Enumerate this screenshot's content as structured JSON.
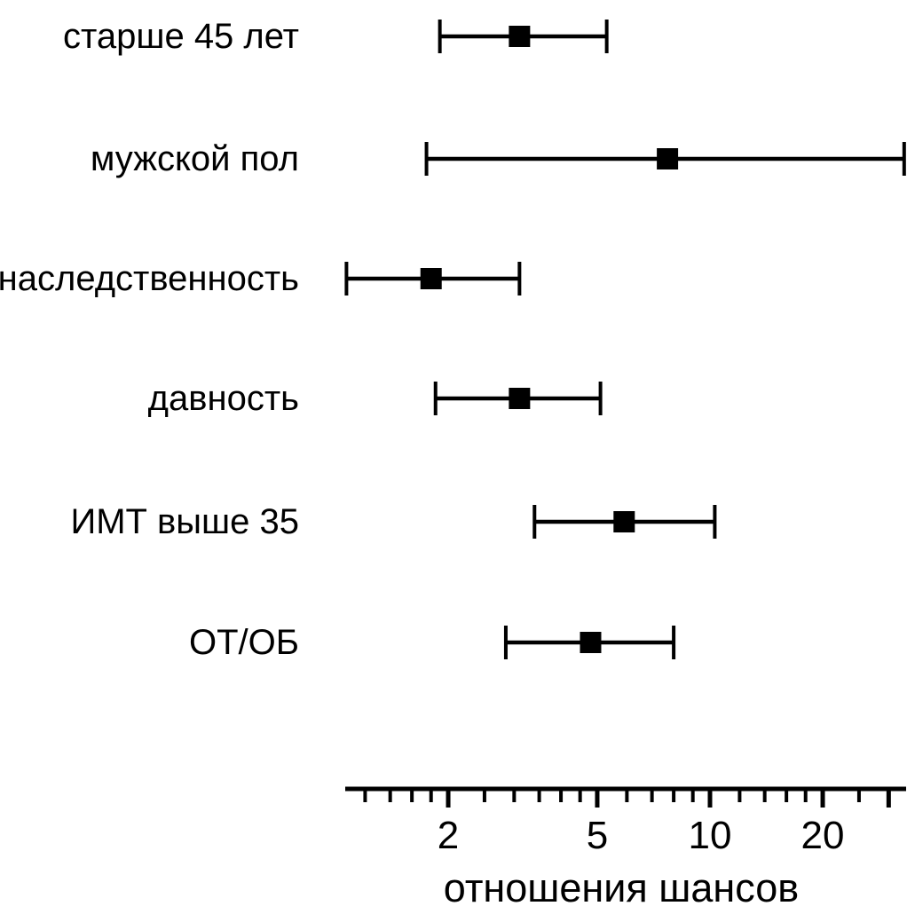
{
  "figure": {
    "background": "#ffffff",
    "ink_color": "#000000"
  },
  "chart_data": {
    "type": "scatter",
    "variant": "forest-plot-odds-ratios",
    "orientation": "horizontal",
    "x_scale": "log",
    "xlabel": "отношения шансов",
    "xlim": [
      1.06,
      33.5
    ],
    "grid": false,
    "legend": false,
    "marker": "filled-square",
    "x_major_ticks": [
      {
        "value": 2,
        "label": "2"
      },
      {
        "value": 5,
        "label": "5"
      },
      {
        "value": 10,
        "label": "10"
      },
      {
        "value": 20,
        "label": "20"
      }
    ],
    "x_minor_ticks": [
      1.2,
      1.4,
      1.6,
      1.8,
      2.5,
      3,
      3.5,
      4,
      4.5,
      6,
      7,
      8,
      9,
      12,
      14,
      16,
      18,
      25
    ],
    "x_long_unlabeled_ticks": [
      30
    ],
    "series": [
      {
        "label": "старше 45 лет",
        "odds_ratio": 3.1,
        "ci_low": 1.9,
        "ci_high": 5.3
      },
      {
        "label": "мужской пол",
        "odds_ratio": 7.7,
        "ci_low": 1.75,
        "ci_high": 33.0
      },
      {
        "label": "наследственность",
        "odds_ratio": 1.8,
        "ci_low": 1.07,
        "ci_high": 3.1
      },
      {
        "label": "давность",
        "odds_ratio": 3.1,
        "ci_low": 1.85,
        "ci_high": 5.1
      },
      {
        "label": "ИМТ выше 35",
        "odds_ratio": 5.9,
        "ci_low": 3.4,
        "ci_high": 10.3
      },
      {
        "label": "ОТ/ОБ",
        "odds_ratio": 4.8,
        "ci_low": 2.85,
        "ci_high": 8.0
      }
    ]
  }
}
